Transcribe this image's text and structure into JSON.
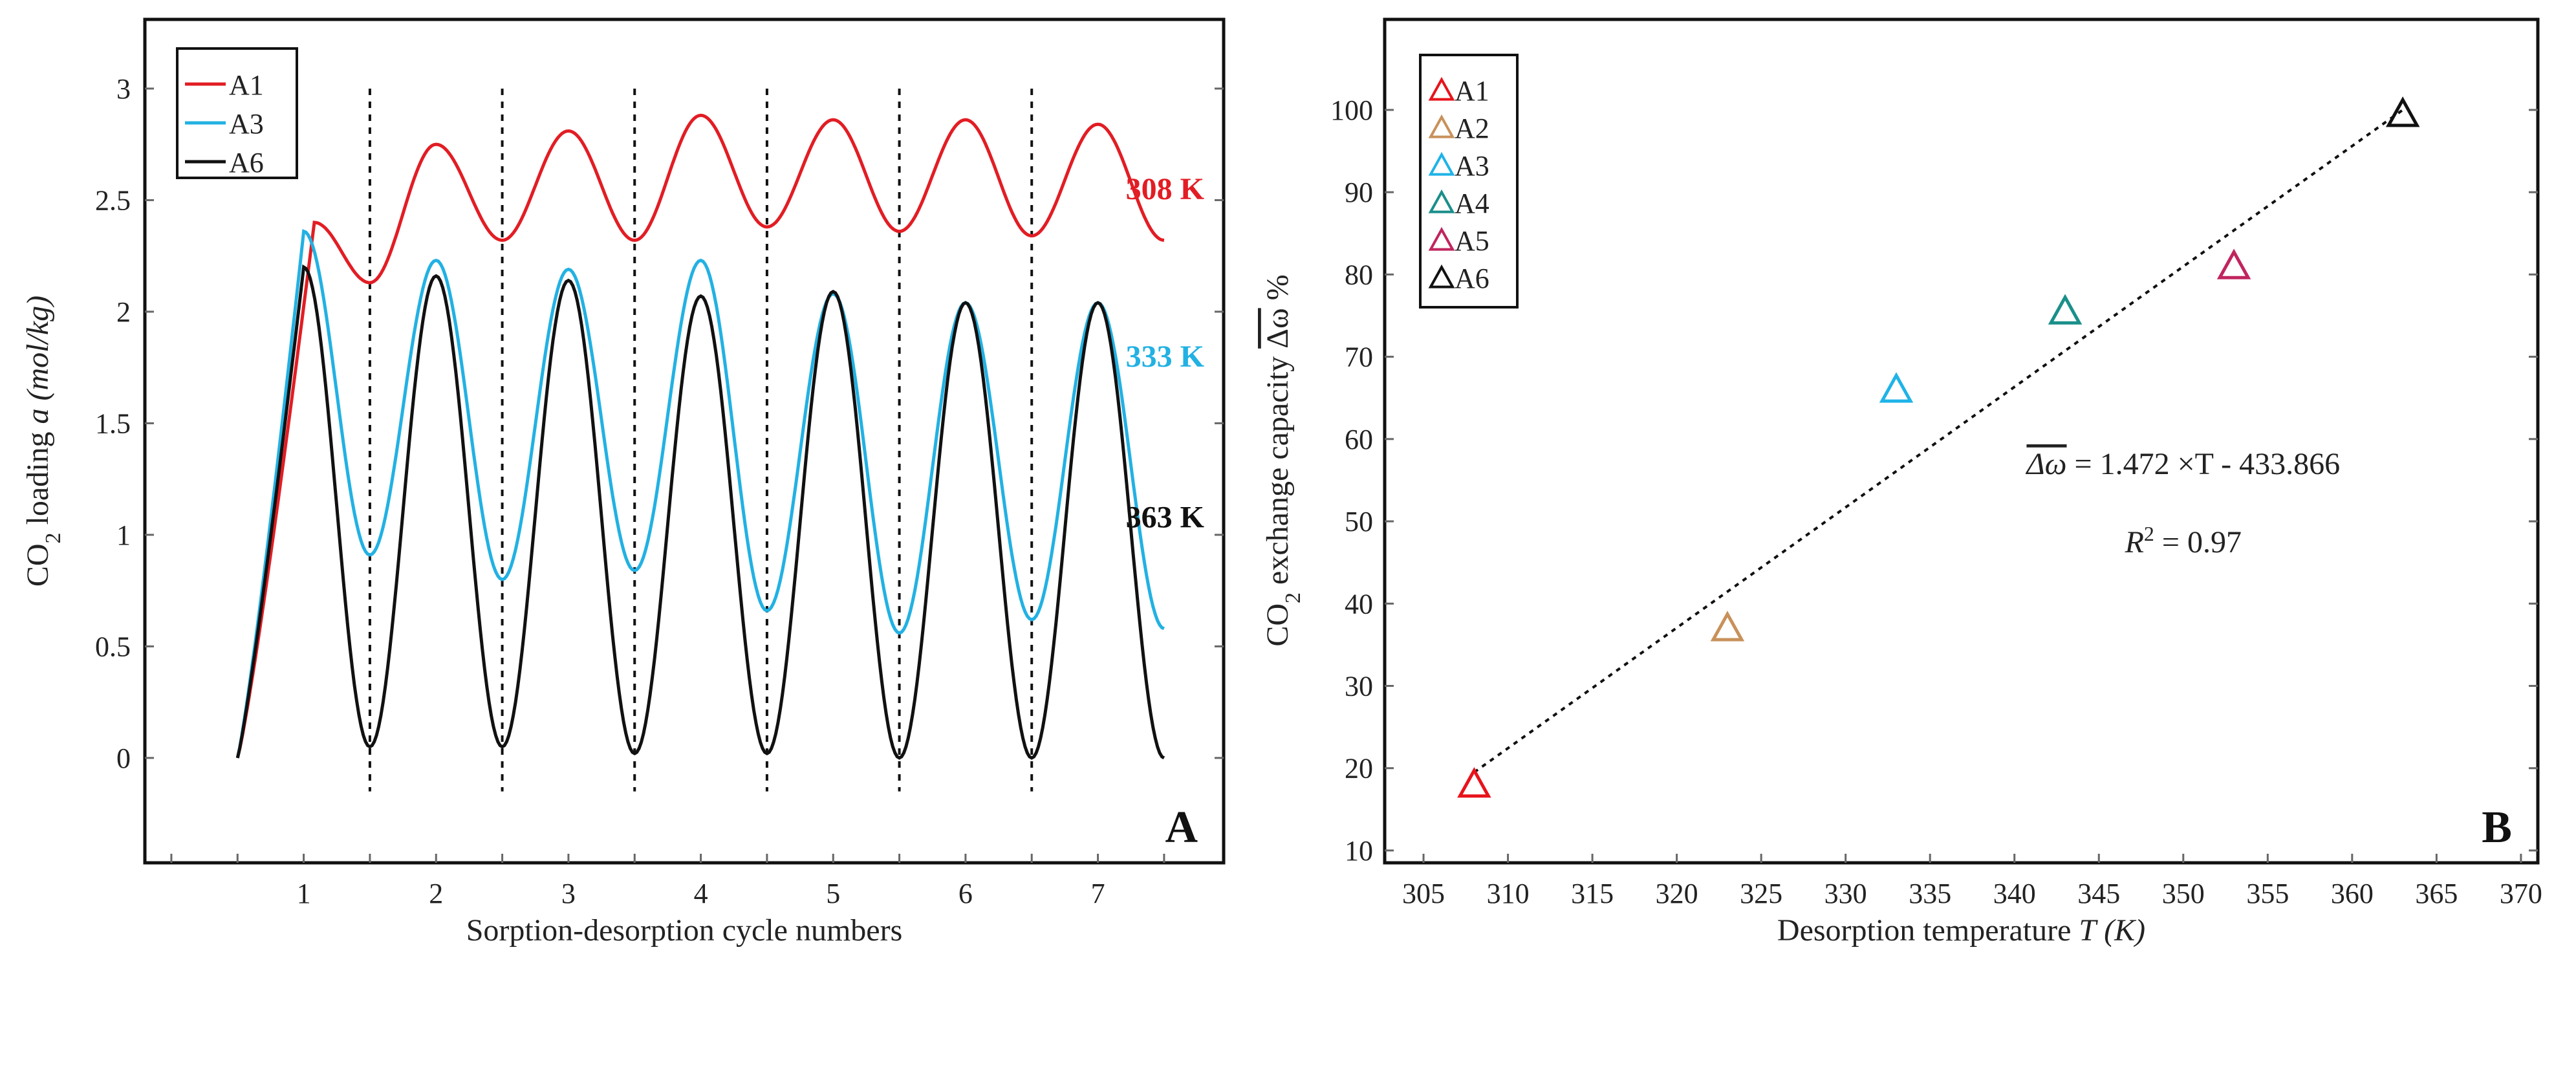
{
  "chart_data": [
    {
      "type": "line",
      "panel_label": "A",
      "xlabel": "Sorption-desorption cycle numbers",
      "ylabel": {
        "pre": "CO",
        "sub": "2",
        "mid": " loading ",
        "var": "a",
        "unit": "(mol/kg)"
      },
      "xlim": [
        -0.2,
        7.95
      ],
      "ylim": [
        -0.47,
        3.31
      ],
      "xticks": [
        1,
        2,
        3,
        4,
        5,
        6,
        7
      ],
      "yticks": [
        0,
        0.5,
        1,
        1.5,
        2,
        2.5,
        3
      ],
      "ytick_labels": [
        "0",
        "0.5",
        "1",
        "1.5",
        "2",
        "2.5",
        "3"
      ],
      "cycle_boundaries": [
        1.5,
        2.5,
        3.5,
        4.5,
        5.5,
        6.5
      ],
      "legend": "top-left",
      "series": [
        {
          "name": "A1",
          "color": "#e21d24",
          "annotation": "308 K",
          "annotation_y": 2.55,
          "points": [
            [
              0.5,
              0
            ],
            [
              1.08,
              2.4
            ],
            [
              1.5,
              2.13
            ],
            [
              2,
              2.75
            ],
            [
              2.5,
              2.32
            ],
            [
              3,
              2.81
            ],
            [
              3.5,
              2.32
            ],
            [
              4,
              2.88
            ],
            [
              4.5,
              2.38
            ],
            [
              5,
              2.86
            ],
            [
              5.5,
              2.36
            ],
            [
              6,
              2.86
            ],
            [
              6.5,
              2.34
            ],
            [
              7,
              2.84
            ],
            [
              7.5,
              2.32
            ]
          ]
        },
        {
          "name": "A3",
          "color": "#22b1e3",
          "annotation": "333 K",
          "annotation_y": 1.8,
          "points": [
            [
              0.5,
              0
            ],
            [
              1,
              2.36
            ],
            [
              1.5,
              0.91
            ],
            [
              2,
              2.23
            ],
            [
              2.5,
              0.8
            ],
            [
              3,
              2.19
            ],
            [
              3.5,
              0.84
            ],
            [
              4,
              2.23
            ],
            [
              4.5,
              0.66
            ],
            [
              5,
              2.08
            ],
            [
              5.5,
              0.56
            ],
            [
              6,
              2.04
            ],
            [
              6.5,
              0.62
            ],
            [
              7,
              2.04
            ],
            [
              7.5,
              0.58
            ]
          ]
        },
        {
          "name": "A6",
          "color": "#111111",
          "annotation": "363 K",
          "annotation_y": 1.08,
          "points": [
            [
              0.5,
              0
            ],
            [
              1,
              2.2
            ],
            [
              1.5,
              0.05
            ],
            [
              2,
              2.16
            ],
            [
              2.5,
              0.05
            ],
            [
              3,
              2.14
            ],
            [
              3.5,
              0.02
            ],
            [
              4,
              2.07
            ],
            [
              4.5,
              0.02
            ],
            [
              5,
              2.09
            ],
            [
              5.5,
              0.0
            ],
            [
              6,
              2.04
            ],
            [
              6.5,
              0.0
            ],
            [
              7,
              2.04
            ],
            [
              7.5,
              0.0
            ]
          ]
        }
      ]
    },
    {
      "type": "scatter",
      "panel_label": "B",
      "xlabel": {
        "pre": "Desorption temperature ",
        "var": "T",
        "unit": "(K)"
      },
      "ylabel": {
        "pre": "CO",
        "sub": "2",
        "mid": " exchange capacity ",
        "over": "Δω",
        "post": " %"
      },
      "xlim": [
        302.7,
        371
      ],
      "ylim": [
        8.5,
        111
      ],
      "xticks": [
        305,
        310,
        315,
        320,
        325,
        330,
        335,
        340,
        345,
        350,
        355,
        360,
        365,
        370
      ],
      "yticks": [
        10,
        20,
        30,
        40,
        50,
        60,
        70,
        80,
        90,
        100
      ],
      "legend": "top-left",
      "points": [
        {
          "name": "A1",
          "x": 308,
          "y": 18,
          "color": "#e8131b"
        },
        {
          "name": "A2",
          "x": 323,
          "y": 37,
          "color": "#c8915a"
        },
        {
          "name": "A3",
          "x": 333,
          "y": 66,
          "color": "#1fb3e8"
        },
        {
          "name": "A4",
          "x": 343,
          "y": 75.5,
          "color": "#1a8f8a"
        },
        {
          "name": "A5",
          "x": 353,
          "y": 81,
          "color": "#c0255e"
        },
        {
          "name": "A6",
          "x": 363,
          "y": 99.5,
          "color": "#111111"
        }
      ],
      "fit": {
        "x": [
          308,
          363
        ],
        "y": [
          19.5,
          100
        ]
      },
      "equation": {
        "over": "Δω",
        "rest": " = 1.472 ×T - 433.866",
        "r_var": "R",
        "r_sup": "2",
        "r_rest": " = 0.97"
      }
    }
  ]
}
